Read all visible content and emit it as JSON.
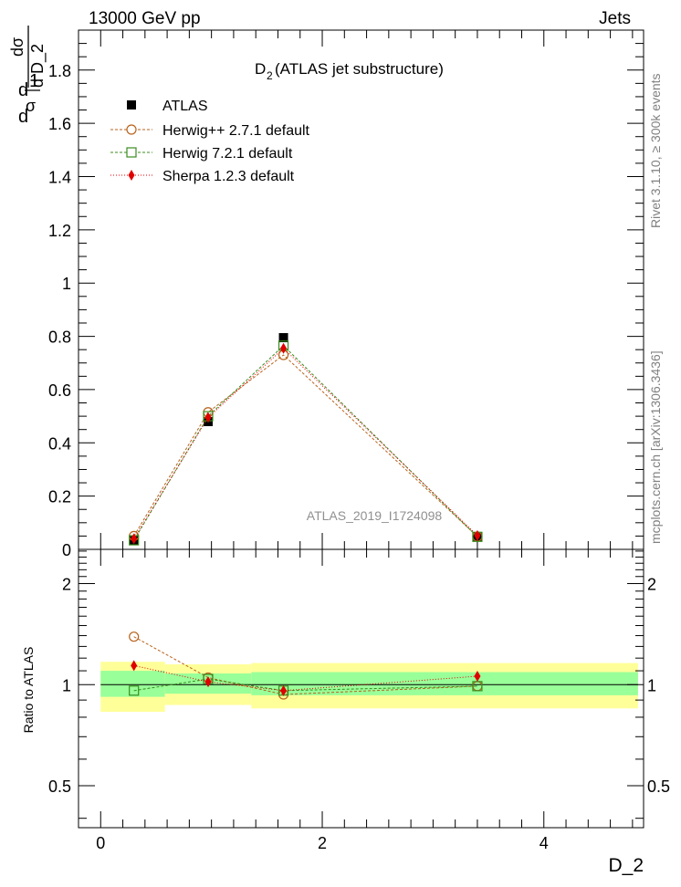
{
  "header": {
    "left": "13000 GeV pp",
    "right": "Jets"
  },
  "side_text": {
    "rivet": "Rivet 3.1.10, ≥ 300k events",
    "mcplots": "mcplots.cern.ch [arXiv:1306.3436]"
  },
  "colors": {
    "atlas": "#000000",
    "herwigpp": "#b8621b",
    "herwig7": "#3a8c1e",
    "sherpa": "#e00000",
    "band_inner": "#99ff99",
    "band_outer": "#ffff99"
  },
  "chart_data": [
    {
      "type": "scatter",
      "panel": "main",
      "title": "D",
      "title_sub": "2",
      "title_rest": " (ATLAS jet substructure)",
      "watermark": "ATLAS_2019_I1724098",
      "xlim": [
        -0.2,
        4.9
      ],
      "ylim": [
        0,
        1.95
      ],
      "ylabel": {
        "a": "d",
        "b": "1",
        "c": "σ",
        "d": "d",
        "e": "dσ",
        "f": "d D_2"
      },
      "yticks": [
        0.2,
        0.4,
        0.6,
        0.8,
        1,
        1.2,
        1.4,
        1.6,
        1.8
      ],
      "ytick_labels": [
        "0.2",
        "0.4",
        "0.6",
        "0.8",
        "1",
        "1.2",
        "1.4",
        "1.6",
        "1.8"
      ],
      "ytick_zero_label": "0",
      "series": [
        {
          "name": "ATLAS",
          "marker": "square-filled",
          "x": [
            0.3,
            0.97,
            1.65,
            3.4
          ],
          "y": [
            0.035,
            0.48,
            0.795,
            0.048
          ]
        },
        {
          "name": "Herwig++ 2.7.1 default",
          "marker": "circle-open",
          "x": [
            0.3,
            0.97,
            1.65,
            3.4
          ],
          "y": [
            0.05,
            0.515,
            0.73,
            0.048
          ]
        },
        {
          "name": "Herwig 7.2.1 default",
          "marker": "square-open",
          "x": [
            0.3,
            0.97,
            1.65,
            3.4
          ],
          "y": [
            0.034,
            0.5,
            0.765,
            0.047
          ]
        },
        {
          "name": "Sherpa 1.2.3 default",
          "marker": "diamond-filled",
          "x": [
            0.3,
            0.97,
            1.65,
            3.4
          ],
          "y": [
            0.04,
            0.495,
            0.755,
            0.052
          ]
        }
      ]
    },
    {
      "type": "line",
      "panel": "ratio",
      "xlabel": "D_2",
      "ylabel": "Ratio to ATLAS",
      "xlim": [
        -0.2,
        4.9
      ],
      "ylim": [
        0.375,
        2.53
      ],
      "xticks": [
        0,
        2,
        4
      ],
      "xtick_labels": [
        "0",
        "2",
        "4"
      ],
      "yticks": [
        0.5,
        1,
        2
      ],
      "ytick_labels": [
        "0.5",
        "1",
        "2"
      ],
      "bins": [
        {
          "xlo": 0.0,
          "xhi": 0.58,
          "inner": [
            0.92,
            1.1
          ],
          "outer": [
            0.83,
            1.17
          ]
        },
        {
          "xlo": 0.58,
          "xhi": 1.36,
          "inner": [
            0.94,
            1.08
          ],
          "outer": [
            0.87,
            1.15
          ]
        },
        {
          "xlo": 1.36,
          "xhi": 4.85,
          "inner": [
            0.93,
            1.09
          ],
          "outer": [
            0.85,
            1.16
          ]
        }
      ],
      "series": [
        {
          "name": "Herwig++ 2.7.1 default",
          "x": [
            0.3,
            0.97,
            1.65,
            3.4
          ],
          "y": [
            1.39,
            1.05,
            0.935,
            0.99
          ]
        },
        {
          "name": "Herwig 7.2.1 default",
          "x": [
            0.3,
            0.97,
            1.65,
            3.4
          ],
          "y": [
            0.96,
            1.04,
            0.96,
            0.99
          ]
        },
        {
          "name": "Sherpa 1.2.3 default",
          "x": [
            0.3,
            0.97,
            1.65,
            3.4
          ],
          "y": [
            1.14,
            1.02,
            0.96,
            1.06
          ]
        }
      ]
    }
  ]
}
